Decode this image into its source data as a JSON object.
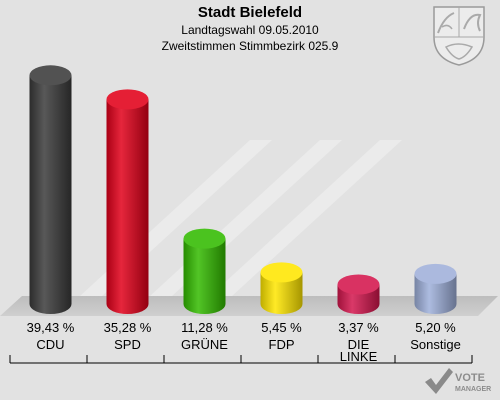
{
  "header": {
    "title": "Stadt Bielefeld",
    "subtitle1": "Landtagswahl 09.05.2010",
    "subtitle2": "Zweitstimmen Stimmbezirk 025.9"
  },
  "brand": {
    "line1": "VOTE",
    "line2": "MANAGER"
  },
  "chart_data": {
    "type": "bar",
    "title": "Stadt Bielefeld",
    "categories": [
      "CDU",
      "SPD",
      "GRÜNE",
      "FDP",
      "DIE LINKE",
      "Sonstige"
    ],
    "category_lines": [
      [
        "CDU"
      ],
      [
        "SPD"
      ],
      [
        "GRÜNE"
      ],
      [
        "FDP"
      ],
      [
        "DIE",
        "LINKE"
      ],
      [
        "Sonstige"
      ]
    ],
    "values": [
      39.43,
      35.28,
      11.28,
      5.45,
      3.37,
      5.2
    ],
    "value_labels": [
      "39,43 %",
      "35,28 %",
      "11,28 %",
      "5,45 %",
      "3,37 %",
      "5,20 %"
    ],
    "colors": [
      "#3a3a3a",
      "#e2001a",
      "#33bb00",
      "#ffe600",
      "#d4164d",
      "#9fb0da"
    ],
    "ylim": [
      0,
      40
    ],
    "grid": false,
    "legend": "none"
  }
}
